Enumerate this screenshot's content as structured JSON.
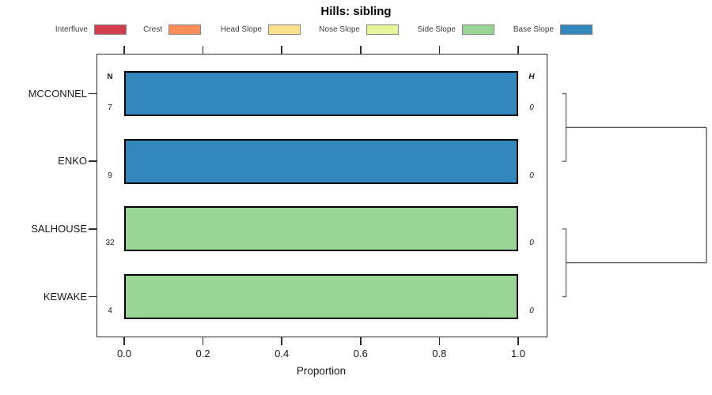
{
  "title": "Hills: sibling",
  "legend": {
    "items": [
      {
        "label": "Interfluve",
        "color": "#D53E4F"
      },
      {
        "label": "Crest",
        "color": "#FC8D59"
      },
      {
        "label": "Head Slope",
        "color": "#FEE08B"
      },
      {
        "label": "Nose Slope",
        "color": "#E6F598"
      },
      {
        "label": "Side Slope",
        "color": "#99D594"
      },
      {
        "label": "Base Slope",
        "color": "#3288BD"
      }
    ]
  },
  "chart_data": {
    "type": "bar",
    "orientation": "horizontal",
    "title": "Hills: sibling",
    "xlabel": "Proportion",
    "xlim": [
      0.0,
      1.0
    ],
    "xticks": [
      "0.0",
      "0.2",
      "0.4",
      "0.6",
      "0.8",
      "1.0"
    ],
    "n_header": "N",
    "h_header": "H",
    "categories": [
      "MCCONNEL",
      "ENKO",
      "SALHOUSE",
      "KEWAKE"
    ],
    "rows": [
      {
        "label": "MCCONNEL",
        "n": "7",
        "h": "0",
        "segments": [
          {
            "class": "Base Slope",
            "proportion": 1.0,
            "color": "#3288BD"
          }
        ]
      },
      {
        "label": "ENKO",
        "n": "9",
        "h": "0",
        "segments": [
          {
            "class": "Base Slope",
            "proportion": 1.0,
            "color": "#3288BD"
          }
        ]
      },
      {
        "label": "SALHOUSE",
        "n": "32",
        "h": "0",
        "segments": [
          {
            "class": "Side Slope",
            "proportion": 1.0,
            "color": "#99D594"
          }
        ]
      },
      {
        "label": "KEWAKE",
        "n": "4",
        "h": "0",
        "segments": [
          {
            "class": "Side Slope",
            "proportion": 1.0,
            "color": "#99D594"
          }
        ]
      }
    ],
    "dendrogram": {
      "clusters": [
        {
          "members": [
            "MCCONNEL",
            "ENKO"
          ],
          "height": 0
        },
        {
          "members": [
            "SALHOUSE",
            "KEWAKE"
          ],
          "height": 0
        }
      ],
      "root_joins_clusters": [
        0,
        1
      ]
    }
  }
}
